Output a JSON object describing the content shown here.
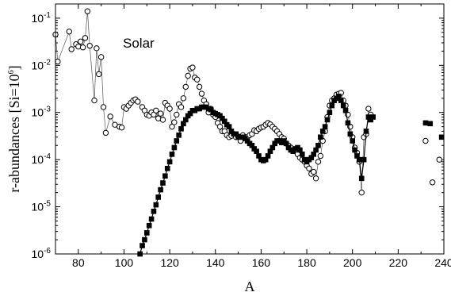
{
  "chart_data": {
    "type": "scatter",
    "xlabel": "A",
    "ylabel": "r-abundances [Si=10",
    "ylabel_exp": "6",
    "ylabel_close": "]",
    "annotation": "Solar",
    "xlim": [
      70,
      240
    ],
    "ylim": [
      1e-06,
      0.2
    ],
    "yscale": "log",
    "xticks": [
      80,
      100,
      120,
      140,
      160,
      180,
      200,
      220,
      240
    ],
    "yticks": [
      {
        "v": 1e-06,
        "base": "10",
        "exp": "-6"
      },
      {
        "v": 1e-05,
        "base": "10",
        "exp": "-5"
      },
      {
        "v": 0.0001,
        "base": "10",
        "exp": "-4"
      },
      {
        "v": 0.001,
        "base": "10",
        "exp": "-3"
      },
      {
        "v": 0.01,
        "base": "10",
        "exp": "-2"
      },
      {
        "v": 0.1,
        "base": "10",
        "exp": "-1"
      }
    ],
    "series": [
      {
        "marker": "open-circle",
        "line": true,
        "points": [
          [
            70,
            0.045
          ],
          [
            71,
            0.012
          ],
          [
            76,
            0.052
          ],
          [
            77,
            0.022
          ],
          [
            79,
            0.028
          ],
          [
            80,
            0.025
          ],
          [
            81,
            0.032
          ],
          [
            82,
            0.024
          ],
          [
            83,
            0.038
          ],
          [
            84,
            0.14
          ],
          [
            85,
            0.026
          ],
          [
            87,
            0.0018
          ],
          [
            88,
            0.023
          ],
          [
            89,
            0.0065
          ],
          [
            90,
            0.015
          ],
          [
            91,
            0.0013
          ],
          [
            92,
            0.00037
          ],
          [
            94,
            0.00082
          ],
          [
            96,
            0.00055
          ],
          [
            98,
            0.0005
          ],
          [
            99,
            0.00048
          ],
          [
            100,
            0.0013
          ],
          [
            101,
            0.0012
          ],
          [
            102,
            0.0014
          ],
          [
            103,
            0.0016
          ],
          [
            104,
            0.0018
          ],
          [
            105,
            0.0019
          ],
          [
            106,
            0.0017
          ],
          [
            108,
            0.0013
          ],
          [
            109,
            0.0011
          ],
          [
            110,
            0.0009
          ],
          [
            111,
            0.00085
          ],
          [
            112,
            0.001
          ],
          [
            113,
            0.0009
          ],
          [
            114,
            0.0011
          ],
          [
            115,
            0.00075
          ],
          [
            116,
            0.00095
          ],
          [
            117,
            0.0007
          ],
          [
            118,
            0.0016
          ],
          [
            119,
            0.0014
          ],
          [
            120,
            0.0012
          ],
          [
            121,
            0.0005
          ],
          [
            122,
            0.00062
          ],
          [
            123,
            0.0009
          ],
          [
            124,
            0.0015
          ],
          [
            125,
            0.0013
          ],
          [
            126,
            0.002
          ],
          [
            127,
            0.0035
          ],
          [
            128,
            0.006
          ],
          [
            129,
            0.0085
          ],
          [
            130,
            0.009
          ],
          [
            131,
            0.0055
          ],
          [
            132,
            0.005
          ],
          [
            133,
            0.0035
          ],
          [
            134,
            0.0025
          ],
          [
            135,
            0.0018
          ],
          [
            136,
            0.0015
          ],
          [
            137,
            0.001
          ],
          [
            138,
            0.0012
          ],
          [
            139,
            0.0009
          ],
          [
            140,
            0.0008
          ],
          [
            141,
            0.0006
          ],
          [
            142,
            0.0005
          ],
          [
            143,
            0.0004
          ],
          [
            144,
            0.0004
          ],
          [
            145,
            0.00033
          ],
          [
            146,
            0.0003
          ],
          [
            147,
            0.00032
          ],
          [
            148,
            0.00035
          ],
          [
            149,
            0.0003
          ],
          [
            150,
            0.00031
          ],
          [
            151,
            0.00025
          ],
          [
            152,
            0.00033
          ],
          [
            153,
            0.0003
          ],
          [
            154,
            0.0003
          ],
          [
            155,
            0.00033
          ],
          [
            156,
            0.00035
          ],
          [
            157,
            0.00042
          ],
          [
            158,
            0.0004
          ],
          [
            159,
            0.00045
          ],
          [
            160,
            0.00048
          ],
          [
            161,
            0.0005
          ],
          [
            162,
            0.00055
          ],
          [
            163,
            0.0006
          ],
          [
            164,
            0.00056
          ],
          [
            165,
            0.0005
          ],
          [
            166,
            0.00045
          ],
          [
            167,
            0.0004
          ],
          [
            168,
            0.00035
          ],
          [
            169,
            0.0003
          ],
          [
            170,
            0.00028
          ],
          [
            171,
            0.00022
          ],
          [
            172,
            0.0002
          ],
          [
            173,
            0.00018
          ],
          [
            174,
            0.00016
          ],
          [
            175,
            0.00015
          ],
          [
            176,
            0.00013
          ],
          [
            177,
            0.00011
          ],
          [
            178,
            0.0001
          ],
          [
            179,
            9e-05
          ],
          [
            180,
            7.5e-05
          ],
          [
            181,
            6.5e-05
          ],
          [
            182,
            5e-05
          ],
          [
            183,
            5.5e-05
          ],
          [
            184,
            4e-05
          ],
          [
            185,
            9e-05
          ],
          [
            186,
            0.00012
          ],
          [
            187,
            0.00025
          ],
          [
            188,
            0.0004
          ],
          [
            189,
            0.0008
          ],
          [
            190,
            0.0014
          ],
          [
            191,
            0.0018
          ],
          [
            192,
            0.002
          ],
          [
            193,
            0.0024
          ],
          [
            194,
            0.0025
          ],
          [
            195,
            0.0026
          ],
          [
            196,
            0.0018
          ],
          [
            197,
            0.0014
          ],
          [
            198,
            0.0009
          ],
          [
            199,
            0.0005
          ],
          [
            200,
            0.0003
          ],
          [
            201,
            0.00018
          ],
          [
            202,
            0.00014
          ],
          [
            203,
            9e-05
          ],
          [
            204,
            2e-05
          ],
          [
            205,
            0.0003
          ],
          [
            206,
            0.00035
          ],
          [
            207,
            0.0012
          ],
          [
            208,
            0.0009
          ]
        ]
      },
      {
        "marker": "open-circle",
        "line": false,
        "points": [
          [
            232,
            0.00025
          ],
          [
            235,
            3.3e-05
          ],
          [
            238,
            0.0001
          ]
        ]
      },
      {
        "marker": "filled-square",
        "line": true,
        "points": [
          [
            107,
            1e-06
          ],
          [
            108,
            1.5e-06
          ],
          [
            109,
            2e-06
          ],
          [
            110,
            2.8e-06
          ],
          [
            111,
            4e-06
          ],
          [
            112,
            5.5e-06
          ],
          [
            113,
            8e-06
          ],
          [
            114,
            1.1e-05
          ],
          [
            115,
            1.6e-05
          ],
          [
            116,
            2.3e-05
          ],
          [
            117,
            3.2e-05
          ],
          [
            118,
            4.5e-05
          ],
          [
            119,
            6.5e-05
          ],
          [
            120,
            9e-05
          ],
          [
            121,
            0.00013
          ],
          [
            122,
            0.00018
          ],
          [
            123,
            0.00025
          ],
          [
            124,
            0.00033
          ],
          [
            125,
            0.00045
          ],
          [
            126,
            0.00058
          ],
          [
            127,
            0.0007
          ],
          [
            128,
            0.00085
          ],
          [
            129,
            0.00095
          ],
          [
            130,
            0.0011
          ],
          [
            131,
            0.0011
          ],
          [
            132,
            0.0012
          ],
          [
            133,
            0.0012
          ],
          [
            134,
            0.0013
          ],
          [
            135,
            0.0013
          ],
          [
            136,
            0.0013
          ],
          [
            137,
            0.0012
          ],
          [
            138,
            0.00115
          ],
          [
            139,
            0.001
          ],
          [
            140,
            0.00095
          ],
          [
            141,
            0.0009
          ],
          [
            142,
            0.00085
          ],
          [
            143,
            0.00075
          ],
          [
            144,
            0.00065
          ],
          [
            145,
            0.00055
          ],
          [
            146,
            0.0005
          ],
          [
            147,
            0.0004
          ],
          [
            148,
            0.00035
          ],
          [
            149,
            0.00035
          ],
          [
            150,
            0.0003
          ],
          [
            151,
            0.0003
          ],
          [
            152,
            0.0003
          ],
          [
            153,
            0.00028
          ],
          [
            154,
            0.00025
          ],
          [
            155,
            0.00022
          ],
          [
            156,
            0.0002
          ],
          [
            157,
            0.00017
          ],
          [
            158,
            0.00015
          ],
          [
            159,
            0.00012
          ],
          [
            160,
            0.0001
          ],
          [
            161,
            9.5e-05
          ],
          [
            162,
            0.0001
          ],
          [
            163,
            0.00012
          ],
          [
            164,
            0.00015
          ],
          [
            165,
            0.00018
          ],
          [
            166,
            0.00022
          ],
          [
            167,
            0.00025
          ],
          [
            168,
            0.00025
          ],
          [
            169,
            0.00023
          ],
          [
            170,
            0.00025
          ],
          [
            171,
            0.00022
          ],
          [
            172,
            0.00018
          ],
          [
            173,
            0.00016
          ],
          [
            174,
            0.00015
          ],
          [
            175,
            0.00017
          ],
          [
            176,
            0.00018
          ],
          [
            177,
            0.00016
          ],
          [
            178,
            0.00013
          ],
          [
            179,
            0.0001
          ],
          [
            180,
            9e-05
          ],
          [
            181,
            0.0001
          ],
          [
            182,
            0.00011
          ],
          [
            183,
            0.00013
          ],
          [
            184,
            0.00016
          ],
          [
            185,
            0.0002
          ],
          [
            186,
            0.0003
          ],
          [
            187,
            0.0004
          ],
          [
            188,
            0.0005
          ],
          [
            189,
            0.0007
          ],
          [
            190,
            0.001
          ],
          [
            191,
            0.0014
          ],
          [
            192,
            0.0018
          ],
          [
            193,
            0.002
          ],
          [
            194,
            0.0022
          ],
          [
            195,
            0.0018
          ],
          [
            196,
            0.0014
          ],
          [
            197,
            0.0011
          ],
          [
            198,
            0.0006
          ],
          [
            199,
            0.00035
          ],
          [
            200,
            0.00025
          ],
          [
            201,
            0.00016
          ],
          [
            202,
            0.00012
          ],
          [
            203,
            0.0001
          ],
          [
            204,
            4e-05
          ],
          [
            205,
            0.0001
          ],
          [
            206,
            0.0004
          ],
          [
            207,
            0.0008
          ],
          [
            208,
            0.0007
          ],
          [
            209,
            0.0008
          ]
        ]
      },
      {
        "marker": "filled-square",
        "line": false,
        "points": [
          [
            232,
            0.0006
          ],
          [
            234,
            0.00058
          ],
          [
            239,
            0.0003
          ]
        ]
      }
    ]
  }
}
